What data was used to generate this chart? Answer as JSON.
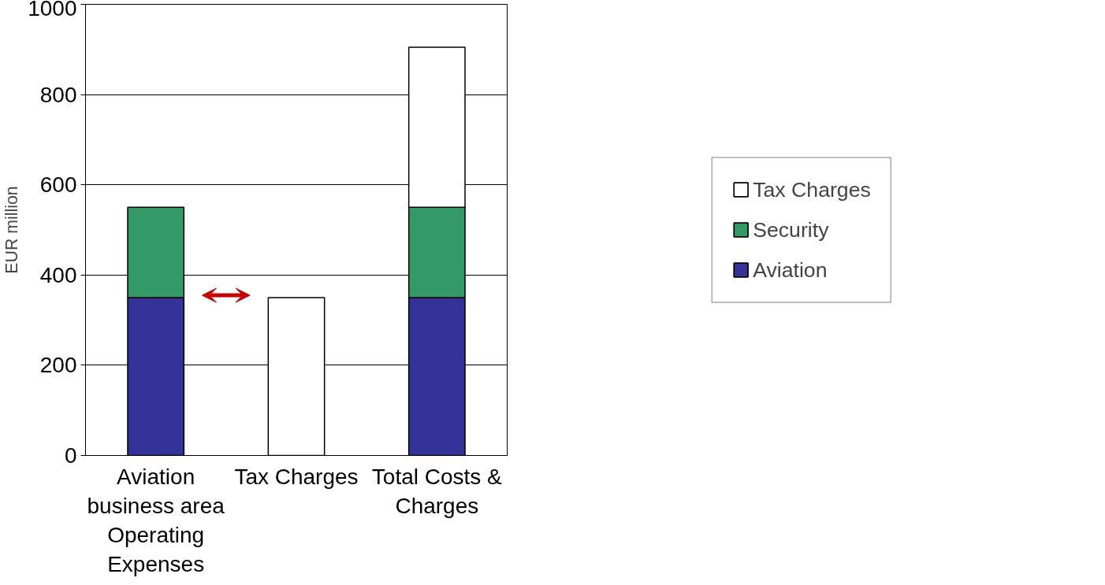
{
  "chart_data": {
    "type": "bar",
    "stacked": true,
    "categories": [
      "Aviation business area Operating Expenses",
      "Tax Charges",
      "Total Costs & Charges"
    ],
    "ylabel": "EUR million",
    "series": [
      {
        "name": "Aviation",
        "color": "#333399",
        "values": [
          350,
          null,
          350
        ]
      },
      {
        "name": "Security",
        "color": "#339966",
        "values": [
          200,
          null,
          200
        ]
      },
      {
        "name": "Tax Charges",
        "color": "#ffffff",
        "values": [
          null,
          350,
          355
        ]
      }
    ],
    "ylim": [
      0,
      1000
    ],
    "yticks": [
      0,
      200,
      400,
      600,
      800,
      1000
    ],
    "grid": "y",
    "legend": "right"
  }
}
